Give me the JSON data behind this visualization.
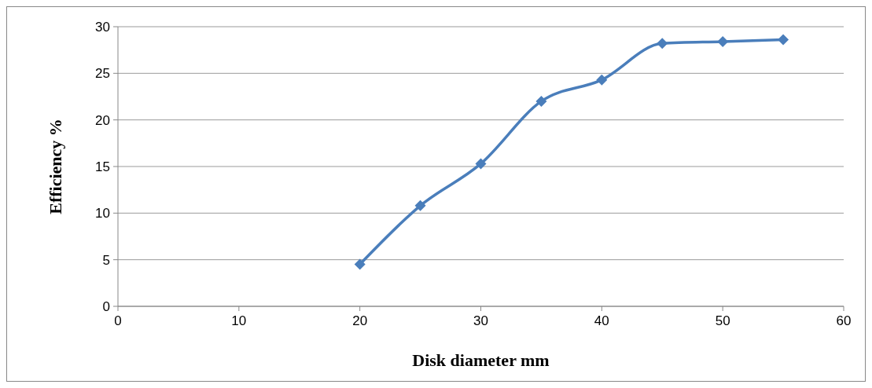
{
  "chart_data": {
    "type": "line",
    "xlabel": "Disk diameter mm",
    "ylabel": "Efficiency %",
    "x": [
      20,
      25,
      30,
      35,
      40,
      45,
      50,
      55
    ],
    "series": [
      {
        "color": "#4a7ebb",
        "values": [
          4.5,
          10.8,
          15.3,
          22.0,
          24.3,
          28.2,
          28.4,
          28.6
        ]
      }
    ],
    "xlim": [
      0,
      60
    ],
    "xticks": [
      0,
      10,
      20,
      30,
      40,
      50,
      60
    ],
    "ylim": [
      0,
      30
    ],
    "yticks": [
      0,
      5,
      10,
      15,
      20,
      25,
      30
    ],
    "grid": "y",
    "marker": "diamond",
    "line_style": "solid"
  }
}
